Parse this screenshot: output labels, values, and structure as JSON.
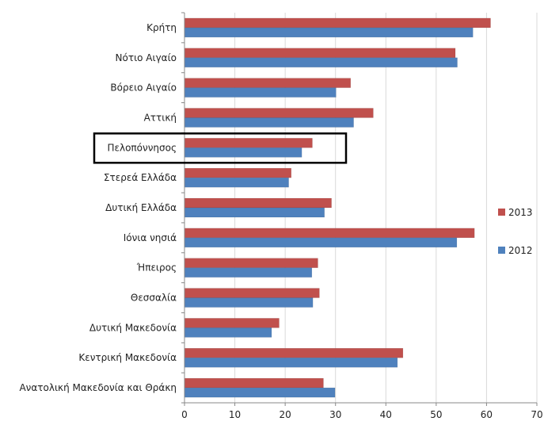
{
  "chart_data": {
    "type": "bar",
    "orientation": "horizontal",
    "title": "",
    "xlabel": "",
    "ylabel": "",
    "xlim": [
      0,
      70
    ],
    "x_ticks": [
      0,
      10,
      20,
      30,
      40,
      50,
      60,
      70
    ],
    "grid": "vertical",
    "legend_position": "right",
    "categories": [
      "Κρήτη",
      "Νότιο Αιγαίο",
      "Βόρειο Αιγαίο",
      "Αττική",
      "Πελοπόννησος",
      "Στερεά Ελλάδα",
      "Δυτική Ελλάδα",
      "Ιόνια νησιά",
      "Ήπειρος",
      "Θεσσαλία",
      "Δυτική Μακεδονία",
      "Κεντρική Μακεδονία",
      "Ανατολική Μακεδονία και Θράκη"
    ],
    "series": [
      {
        "name": "2013",
        "color": "#c0504d",
        "values": [
          60.8,
          53.8,
          33.0,
          37.5,
          25.4,
          21.2,
          29.2,
          57.6,
          26.5,
          26.8,
          18.8,
          43.4,
          27.6
        ]
      },
      {
        "name": "2012",
        "color": "#4f81bd",
        "values": [
          57.3,
          54.2,
          30.1,
          33.6,
          23.3,
          20.7,
          27.8,
          54.1,
          25.3,
          25.5,
          17.3,
          42.3,
          29.9
        ]
      }
    ],
    "highlighted_category": "Πελοπόννησος",
    "highlight_color": "#000000"
  }
}
